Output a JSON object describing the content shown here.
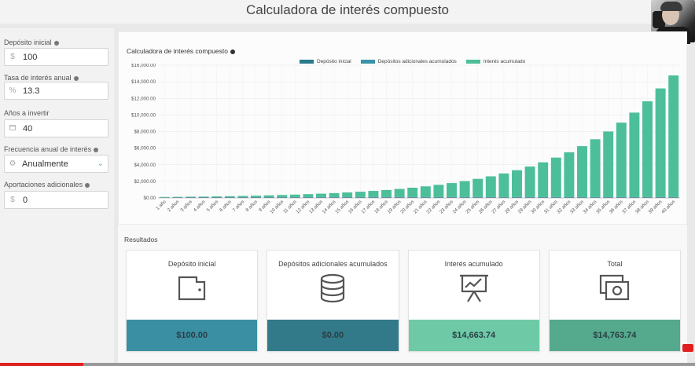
{
  "page": {
    "title": "Calculadora de interés compuesto"
  },
  "sidebar": {
    "deposit": {
      "label": "Depósito inicial",
      "prefix": "$",
      "value": "100"
    },
    "rate": {
      "label": "Tasa de interés anual",
      "prefix": "%",
      "value": "13.3"
    },
    "years": {
      "label": "Años a invertir",
      "value": "40"
    },
    "frequency": {
      "label": "Frecuencia anual de interés",
      "value": "Anualmente"
    },
    "contrib": {
      "label": "Aportaciones adicionales",
      "prefix": "$",
      "value": "0"
    }
  },
  "chart": {
    "title": "Calculadora de interés compuesto",
    "legend": [
      "Depósito inicial",
      "Depósitos adicionales acumulados",
      "Interés acumulado"
    ]
  },
  "chart_data": {
    "type": "bar",
    "stacked": true,
    "categories": [
      "1 año",
      "2 años",
      "3 años",
      "4 años",
      "5 años",
      "6 años",
      "7 años",
      "8 años",
      "9 años",
      "10 años",
      "11 años",
      "12 años",
      "13 años",
      "14 años",
      "15 años",
      "16 años",
      "17 años",
      "18 años",
      "19 años",
      "20 años",
      "21 años",
      "22 años",
      "23 años",
      "24 años",
      "25 años",
      "26 años",
      "27 años",
      "28 años",
      "29 años",
      "30 años",
      "31 años",
      "32 años",
      "33 años",
      "34 años",
      "35 años",
      "36 años",
      "37 años",
      "38 años",
      "39 años",
      "40 años"
    ],
    "series": [
      {
        "name": "Depósito inicial",
        "color": "#2b7a8c",
        "values": [
          100,
          100,
          100,
          100,
          100,
          100,
          100,
          100,
          100,
          100,
          100,
          100,
          100,
          100,
          100,
          100,
          100,
          100,
          100,
          100,
          100,
          100,
          100,
          100,
          100,
          100,
          100,
          100,
          100,
          100,
          100,
          100,
          100,
          100,
          100,
          100,
          100,
          100,
          100,
          100
        ]
      },
      {
        "name": "Depósitos adicionales acumulados",
        "color": "#3a93a8",
        "values": [
          0,
          0,
          0,
          0,
          0,
          0,
          0,
          0,
          0,
          0,
          0,
          0,
          0,
          0,
          0,
          0,
          0,
          0,
          0,
          0,
          0,
          0,
          0,
          0,
          0,
          0,
          0,
          0,
          0,
          0,
          0,
          0,
          0,
          0,
          0,
          0,
          0,
          0,
          0,
          0
        ]
      },
      {
        "name": "Interés acumulado",
        "color": "#4cbf9a",
        "values": [
          13,
          28,
          45,
          64,
          87,
          112,
          141,
          174,
          211,
          253,
          300,
          353,
          414,
          482,
          560,
          648,
          747,
          860,
          987,
          1132,
          1295,
          1481,
          1691,
          1929,
          2199,
          2505,
          2851,
          3243,
          3688,
          4191,
          4762,
          5408,
          6141,
          6971,
          7911,
          8977,
          10184,
          11551,
          13101,
          14664
        ]
      }
    ],
    "yticks": [
      "$0.00",
      "$2,000.00",
      "$4,000.00",
      "$6,000.00",
      "$8,000.00",
      "$10,000.00",
      "$12,000.00",
      "$14,000.00",
      "$16,000.00"
    ],
    "ylim": [
      0,
      16000
    ],
    "grid": true,
    "legend_position": "top"
  },
  "results": {
    "label": "Resultados",
    "cards": [
      {
        "title": "Depósito inicial",
        "value": "$100.00",
        "icon": "wallet-icon",
        "color": "#3b8fa3"
      },
      {
        "title": "Depósitos adicionales acumulados",
        "value": "$0.00",
        "icon": "coins-icon",
        "color": "#327a8a"
      },
      {
        "title": "Interés acumulado",
        "value": "$14,663.74",
        "icon": "chart-board-icon",
        "color": "#6ecaa6"
      },
      {
        "title": "Total",
        "value": "$14,763.74",
        "icon": "money-icon",
        "color": "#55a98c"
      }
    ]
  },
  "video": {
    "progress": 0.12
  }
}
